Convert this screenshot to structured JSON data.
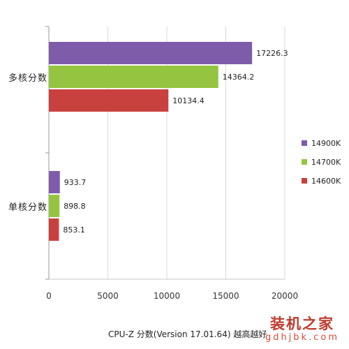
{
  "chart_data": {
    "type": "bar",
    "orientation": "horizontal",
    "categories": [
      "多核分数",
      "单核分数"
    ],
    "series": [
      {
        "name": "14900K",
        "color": "#7E5CAA",
        "values": [
          17226.3,
          933.7
        ]
      },
      {
        "name": "14700K",
        "color": "#94C440",
        "values": [
          14364.2,
          898.8
        ]
      },
      {
        "name": "14600K",
        "color": "#C9413F",
        "values": [
          10134.4,
          853.1
        ]
      }
    ],
    "value_labels": {
      "多核分数": [
        "17226.3",
        "14364.2",
        "10134.4"
      ],
      "单核分数": [
        "933.7",
        "898.8",
        "853.1"
      ]
    },
    "xlim": [
      0,
      20000
    ],
    "x_ticks": [
      "0",
      "5000",
      "10000",
      "15000",
      "20000"
    ],
    "grid": true,
    "legend_position": "right"
  },
  "caption": {
    "text": "CPU-Z  分数(Version 17.01.64)  越高越好"
  },
  "watermark": {
    "top": "装机之家",
    "bottom": "gdhjbk.com"
  }
}
